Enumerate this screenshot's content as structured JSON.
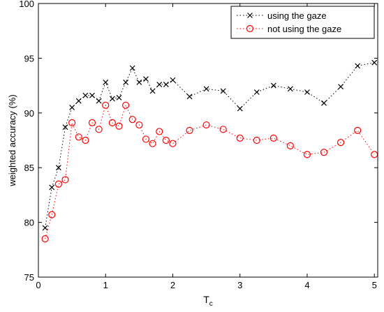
{
  "chart_data": {
    "type": "line",
    "title": "",
    "xlabel": "T",
    "xlabel_sub": "c",
    "ylabel": "weighted accuracy (%)",
    "xlim": [
      0,
      5.05
    ],
    "ylim": [
      75,
      100
    ],
    "xticks": [
      0,
      1,
      2,
      3,
      4,
      5
    ],
    "xtick_labels": [
      "0",
      "1",
      "2",
      "3",
      "4",
      "5"
    ],
    "yticks": [
      75,
      80,
      85,
      90,
      95,
      100
    ],
    "ytick_labels": [
      "75",
      "80",
      "85",
      "90",
      "95",
      "100"
    ],
    "grid": false,
    "legend_position": "top-right",
    "series": [
      {
        "name": "using the gaze",
        "marker": "x",
        "line_style": "dotted",
        "color": "#000000",
        "x": [
          0.1,
          0.2,
          0.3,
          0.4,
          0.5,
          0.6,
          0.7,
          0.8,
          0.9,
          1.0,
          1.1,
          1.2,
          1.3,
          1.4,
          1.5,
          1.6,
          1.7,
          1.8,
          1.9,
          2.0,
          2.25,
          2.5,
          2.75,
          3.0,
          3.25,
          3.5,
          3.75,
          4.0,
          4.25,
          4.5,
          4.75,
          5.0
        ],
        "y": [
          79.5,
          83.2,
          85.0,
          88.7,
          90.5,
          91.1,
          91.6,
          91.6,
          91.1,
          92.8,
          91.3,
          91.4,
          92.8,
          94.1,
          92.8,
          93.1,
          92.0,
          92.6,
          92.6,
          93.0,
          91.5,
          92.2,
          92.0,
          90.4,
          91.9,
          92.5,
          92.2,
          91.9,
          90.9,
          92.4,
          94.3,
          94.6
        ]
      },
      {
        "name": "not using the gaze",
        "marker": "o",
        "line_style": "dotted",
        "color": "#ff0000",
        "x": [
          0.1,
          0.2,
          0.3,
          0.4,
          0.5,
          0.6,
          0.7,
          0.8,
          0.9,
          1.0,
          1.1,
          1.2,
          1.3,
          1.4,
          1.5,
          1.6,
          1.7,
          1.8,
          1.9,
          2.0,
          2.25,
          2.5,
          2.75,
          3.0,
          3.25,
          3.5,
          3.75,
          4.0,
          4.25,
          4.5,
          4.75,
          5.0
        ],
        "y": [
          78.5,
          80.7,
          83.5,
          83.9,
          89.1,
          87.8,
          87.5,
          89.1,
          88.5,
          90.7,
          89.1,
          88.8,
          90.7,
          89.4,
          88.9,
          87.6,
          87.2,
          88.3,
          87.5,
          87.2,
          88.4,
          88.9,
          88.5,
          87.7,
          87.5,
          87.7,
          87.0,
          86.2,
          86.4,
          87.3,
          88.4,
          86.2
        ]
      }
    ]
  }
}
